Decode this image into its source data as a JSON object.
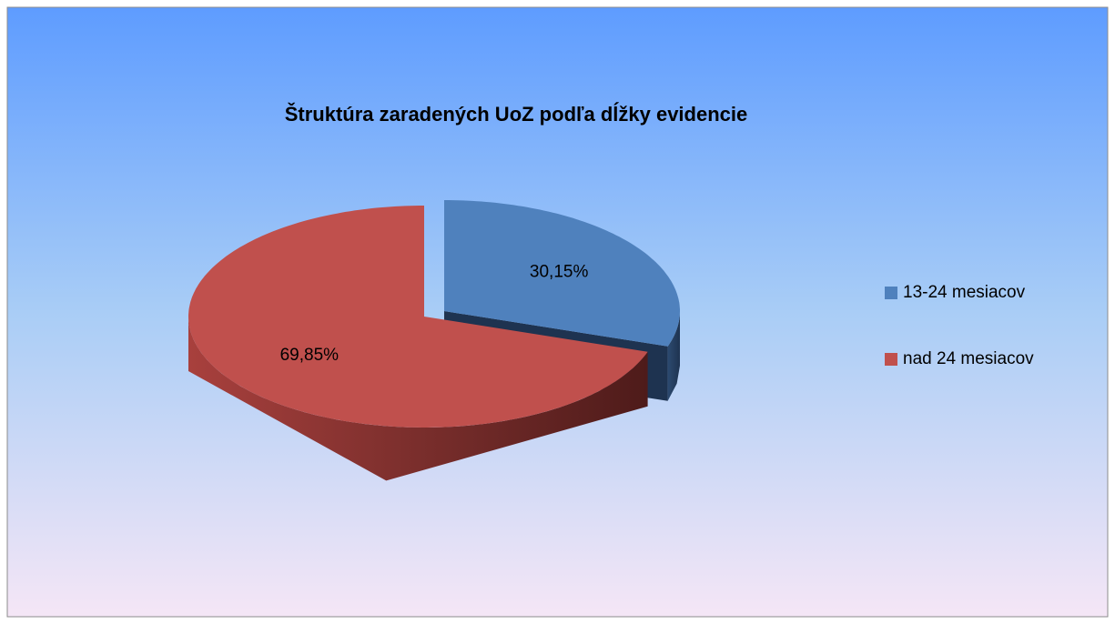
{
  "chart_data": {
    "type": "pie",
    "title": "Štruktúra zaradených UoZ podľa dĺžky evidencie",
    "categories": [
      "13-24 mesiacov",
      "nad 24 mesiacov"
    ],
    "values": [
      30.15,
      69.85
    ],
    "value_labels": [
      "30,15%",
      "69,85%"
    ],
    "colors": [
      "#4f81bd",
      "#c0504d"
    ],
    "legend": "right"
  }
}
